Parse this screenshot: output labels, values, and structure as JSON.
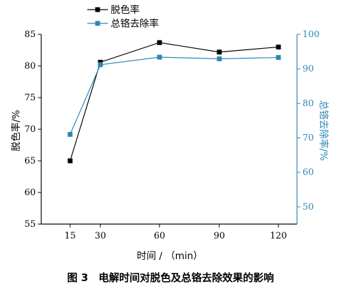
{
  "chart_data": {
    "type": "line",
    "x": [
      15,
      30,
      60,
      90,
      120
    ],
    "xticks": [
      "15",
      "30",
      "60",
      "90",
      "120"
    ],
    "xlabel": "时间 / （min）",
    "y_left": {
      "label": "脱色率/%",
      "range": [
        55,
        85
      ],
      "ticks": [
        "55",
        "60",
        "65",
        "70",
        "75",
        "80",
        "85"
      ]
    },
    "y_right": {
      "label": "总铬去除率/%",
      "range": [
        45,
        100
      ],
      "ticks": [
        "50",
        "60",
        "70",
        "80",
        "90",
        "100"
      ],
      "color": "#2b87b5"
    },
    "series": [
      {
        "name": "脱色率",
        "axis": "left",
        "color": "#000000",
        "values": [
          65.0,
          80.6,
          83.7,
          82.2,
          83.0
        ]
      },
      {
        "name": "总铬去除率",
        "axis": "right",
        "color": "#2b87b5",
        "values": [
          71.0,
          91.2,
          93.4,
          92.9,
          93.3
        ]
      }
    ],
    "legend_position": "top-center",
    "grid": false
  },
  "caption": "图 3　电解时间对脱色及总铬去除效果的影响"
}
